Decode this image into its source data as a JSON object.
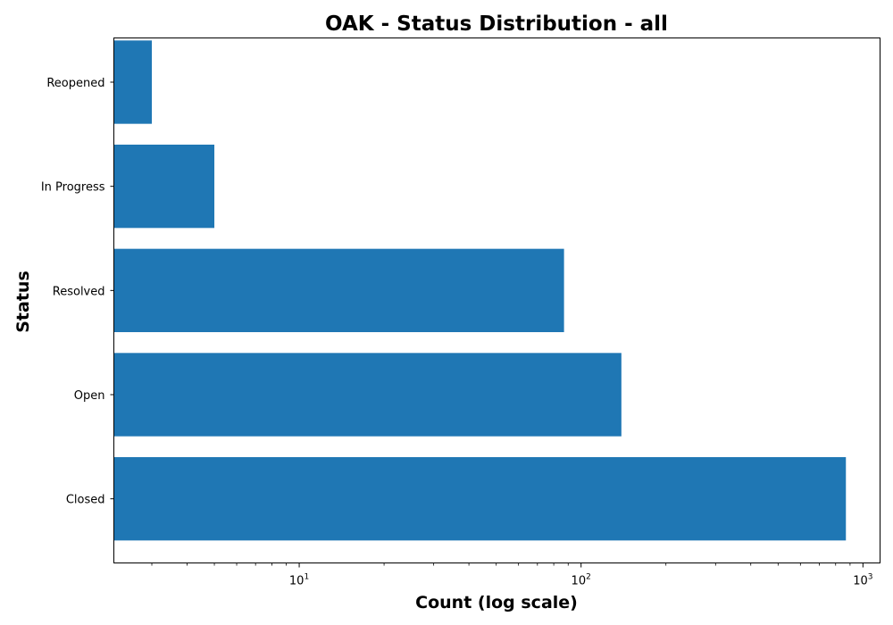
{
  "chart_data": {
    "type": "bar",
    "orientation": "horizontal",
    "title": "OAK - Status Distribution - all",
    "xlabel": "Count (log scale)",
    "ylabel": "Status",
    "xscale": "log",
    "xlim": [
      2.2,
      1150
    ],
    "categories": [
      "Closed",
      "Open",
      "Resolved",
      "In Progress",
      "Reopened"
    ],
    "values": [
      870,
      139,
      87,
      5,
      3
    ],
    "x_ticks": [
      {
        "value": 10,
        "base": "10",
        "exponent": "1"
      },
      {
        "value": 100,
        "base": "10",
        "exponent": "2"
      },
      {
        "value": 1000,
        "base": "10",
        "exponent": "3"
      }
    ],
    "bar_color": "#1f77b4",
    "grid": false,
    "legend": "none"
  }
}
